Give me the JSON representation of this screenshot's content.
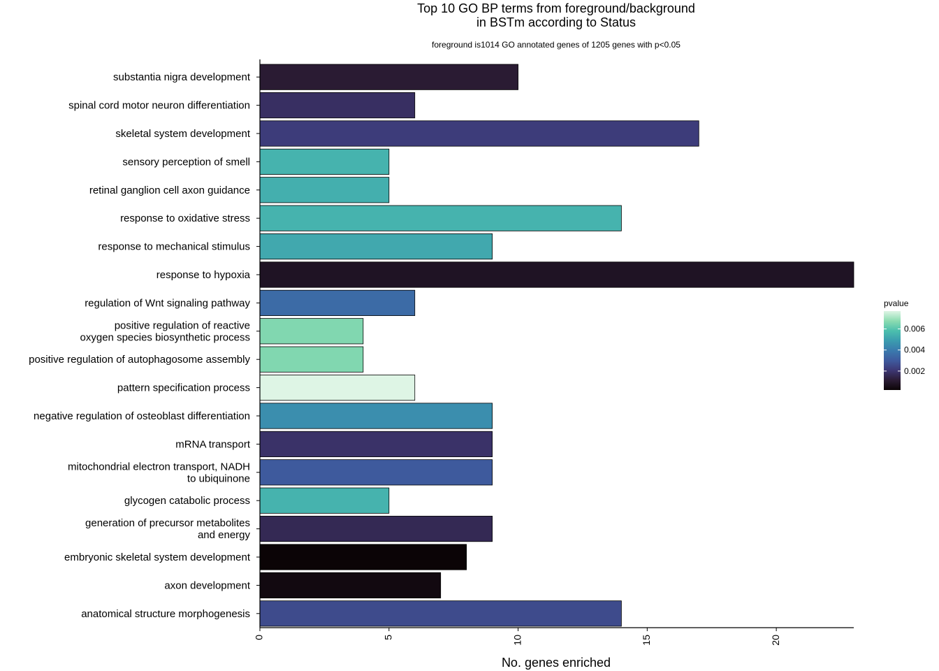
{
  "chart_data": {
    "type": "bar",
    "orientation": "horizontal",
    "title_lines": [
      "Top 10 GO BP terms from foreground/background",
      "in BSTm according to Status"
    ],
    "subtitle": "foreground is1014 GO annotated genes of 1205 genes with p<0.05",
    "xlabel": "No. genes enriched",
    "ylabel": "",
    "xlim": [
      0,
      23
    ],
    "x_ticks": [
      0,
      5,
      10,
      15,
      20
    ],
    "x_tick_labels": [
      "0",
      "5",
      "10",
      "15",
      "20"
    ],
    "grid": false,
    "legend": {
      "title": "pvalue",
      "placement": "right",
      "ticks": [
        0.002,
        0.004,
        0.006
      ],
      "tick_labels": [
        "0.002",
        "0.004",
        "0.006"
      ],
      "range": [
        0.0002,
        0.0077
      ],
      "colormap": [
        "#0b0406",
        "#2b1c35",
        "#3d3774",
        "#3e5a9e",
        "#3a7aad",
        "#3b9caf",
        "#4cbfad",
        "#8cdcb1",
        "#def5e5"
      ]
    },
    "categories": [
      "substantia nigra development",
      "spinal cord motor neuron differentiation",
      "skeletal system development",
      "sensory perception of smell",
      "retinal ganglion cell axon guidance",
      "response to oxidative stress",
      "response to mechanical stimulus",
      "response to hypoxia",
      "regulation of Wnt signaling pathway",
      "positive regulation of reactive\noxygen species biosynthetic process",
      "positive regulation of autophagosome assembly",
      "pattern specification process",
      "negative regulation of osteoblast differentiation",
      "mRNA transport",
      "mitochondrial electron transport, NADH\nto ubiquinone",
      "glycogen catabolic process",
      "generation of precursor metabolites\nand energy",
      "embryonic skeletal system development",
      "axon development",
      "anatomical structure morphogenesis"
    ],
    "values": [
      10,
      6,
      17,
      5,
      5,
      14,
      9,
      23,
      6,
      4,
      4,
      6,
      9,
      9,
      9,
      5,
      9,
      8,
      7,
      14
    ],
    "pvalues": [
      0.0011,
      0.0018,
      0.0022,
      0.0055,
      0.0054,
      0.0055,
      0.0052,
      0.0008,
      0.0035,
      0.0066,
      0.0066,
      0.0077,
      0.0045,
      0.0019,
      0.003,
      0.0055,
      0.0016,
      0.0002,
      0.0004,
      0.0026
    ]
  }
}
